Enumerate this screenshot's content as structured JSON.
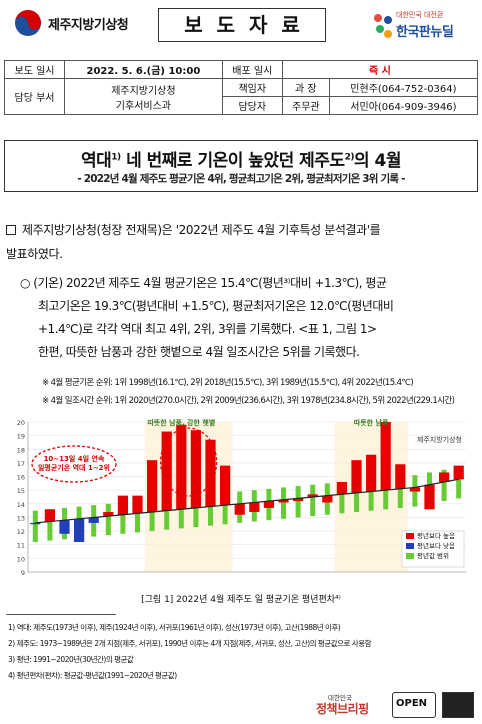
{
  "header": {
    "org_name": "제주지방기상청",
    "doc_title": "보도자료",
    "brand_small": "대한민국 대전환",
    "brand_big": "한국판뉴딜"
  },
  "info": {
    "release_label": "보도 일시",
    "release_value": "2022. 5. 6.(금) 10:00",
    "dist_label": "배포 일시",
    "dist_value": "즉 시",
    "dept_label": "담당 부서",
    "dept_value_1": "제주지방기상청",
    "dept_value_2": "기후서비스과",
    "resp_label": "책임자",
    "resp_title": "과  장",
    "resp_name": "민현주(064-752-0364)",
    "staff_label": "담당자",
    "staff_title": "주무관",
    "staff_name": "서민아(064-909-3946)"
  },
  "headline": {
    "title_a": "역대",
    "sup1": "1)",
    "title_b": " 네 번째로 기온이 높았던 제주도",
    "sup2": "2)",
    "title_c": "의 4월",
    "subtitle": "- 2022년 4월 제주도 평균기온 4위, 평균최고기온 2위, 평균최저기온 3위 기록 -"
  },
  "body": {
    "p1_a": "제주지방기상청(청장 전재목)은 '2022년 제주도 4월 기후특성 분석결과'를",
    "p1_b": "발표하였다.",
    "p2_a": "○ (기온) 2022년 제주도 4월 평균기온은 15.4℃(평년³⁾대비 +1.3℃), 평균",
    "p2_b": "최고기온은 19.3℃(평년대비 +1.5℃), 평균최저기온은 12.0℃(평년대비",
    "p2_c": "+1.4℃)로 각각 역대 최고 4위, 2위, 3위를 기록했다. <표 1, 그림 1>",
    "p2_d": "한편, 따뜻한 남풍과 강한 햇볕으로 4월 일조시간은 5위를 기록했다.",
    "note1": "※ 4월 평균기온 순위: 1위 1998년(16.1℃), 2위 2018년(15.5℃), 3위 1989년(15.5℃), 4위 2022년(15.4℃)",
    "note2": "※ 4월 일조시간 순위: 1위 2020년(270.0시간), 2위 2009년(236.6시간), 3위 1978년(234.8시간), 5위 2022년(229.1시간)"
  },
  "chart_data": {
    "type": "bar",
    "caption": "[그림 1] 2022년 4월 제주도 일 평균기온 평년편차⁴⁾",
    "legend_title": "제주지방기상청",
    "callout": "10~13일 4일 연속\n일평균기온 역대 1~2위",
    "annotation_1": "따뜻한 남풍, 강한 햇볕",
    "annotation_2": "따뜻한 남풍",
    "legend": [
      "평년보다 높음",
      "평년보다 낮음",
      "평년값 범위"
    ],
    "ylim": [
      9,
      20
    ],
    "yticks": [
      9,
      10,
      11,
      12,
      13,
      14,
      15,
      16,
      17,
      18,
      19,
      20
    ],
    "days": [
      1,
      2,
      3,
      4,
      5,
      6,
      7,
      8,
      9,
      10,
      11,
      12,
      13,
      14,
      15,
      16,
      17,
      18,
      19,
      20,
      21,
      22,
      23,
      24,
      25,
      26,
      27,
      28,
      29,
      30
    ],
    "normal": [
      12.6,
      12.7,
      12.8,
      12.9,
      13.0,
      13.1,
      13.2,
      13.3,
      13.4,
      13.5,
      13.6,
      13.7,
      13.8,
      13.9,
      14.0,
      14.1,
      14.2,
      14.3,
      14.4,
      14.5,
      14.6,
      14.7,
      14.8,
      14.9,
      15.0,
      15.1,
      15.2,
      15.4,
      15.6,
      15.8
    ],
    "observed": [
      12.5,
      13.6,
      11.8,
      11.2,
      12.6,
      13.4,
      14.6,
      14.6,
      17.2,
      19.3,
      19.8,
      19.4,
      18.7,
      16.8,
      13.2,
      13.4,
      13.7,
      14.1,
      14.2,
      14.7,
      14.1,
      15.6,
      17.2,
      17.6,
      20.0,
      16.9,
      14.9,
      13.6,
      16.3,
      16.8
    ],
    "low_days": [
      1,
      3,
      4,
      5
    ]
  },
  "footnotes": [
    "1) 역대: 제주도(1973년 이후), 제주(1924년 이후), 서귀포(1961년 이후), 성산(1973년 이후), 고산(1988년 이후)",
    "2) 제주도: 1973~1989년은 2개 지점(제주, 서귀포), 1990년 이후는 4개 지점(제주, 서귀포, 성산, 고산)의 평균값으로 사용함",
    "3) 평년: 1991~2020년(30년간)의 평균값",
    "4) 평년편차(편차): 평균값-평년값(1991~2020년 평균값)"
  ],
  "bottom": {
    "jc_small": "대한민국",
    "jc_big": "정책브리핑",
    "open_label": "OPEN"
  }
}
